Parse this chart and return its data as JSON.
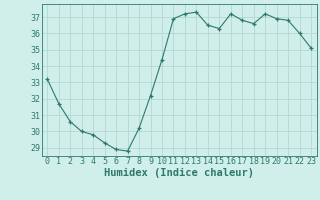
{
  "x": [
    0,
    1,
    2,
    3,
    4,
    5,
    6,
    7,
    8,
    9,
    10,
    11,
    12,
    13,
    14,
    15,
    16,
    17,
    18,
    19,
    20,
    21,
    22,
    23
  ],
  "y": [
    33.2,
    31.7,
    30.6,
    30.0,
    29.8,
    29.3,
    28.9,
    28.8,
    30.2,
    32.2,
    34.4,
    36.9,
    37.2,
    37.3,
    36.5,
    36.3,
    37.2,
    36.8,
    36.6,
    37.2,
    36.9,
    36.8,
    36.0,
    35.1
  ],
  "xlabel": "Humidex (Indice chaleur)",
  "ylim": [
    28.5,
    37.8
  ],
  "yticks": [
    29,
    30,
    31,
    32,
    33,
    34,
    35,
    36,
    37
  ],
  "xticks": [
    0,
    1,
    2,
    3,
    4,
    5,
    6,
    7,
    8,
    9,
    10,
    11,
    12,
    13,
    14,
    15,
    16,
    17,
    18,
    19,
    20,
    21,
    22,
    23
  ],
  "line_color": "#2d7a6a",
  "marker_color": "#2d7a6a",
  "background_color": "#d0eeea",
  "grid_color": "#b0d4ce",
  "tick_fontsize": 6.0,
  "xlabel_fontsize": 7.5,
  "xlabel_fontweight": "bold"
}
